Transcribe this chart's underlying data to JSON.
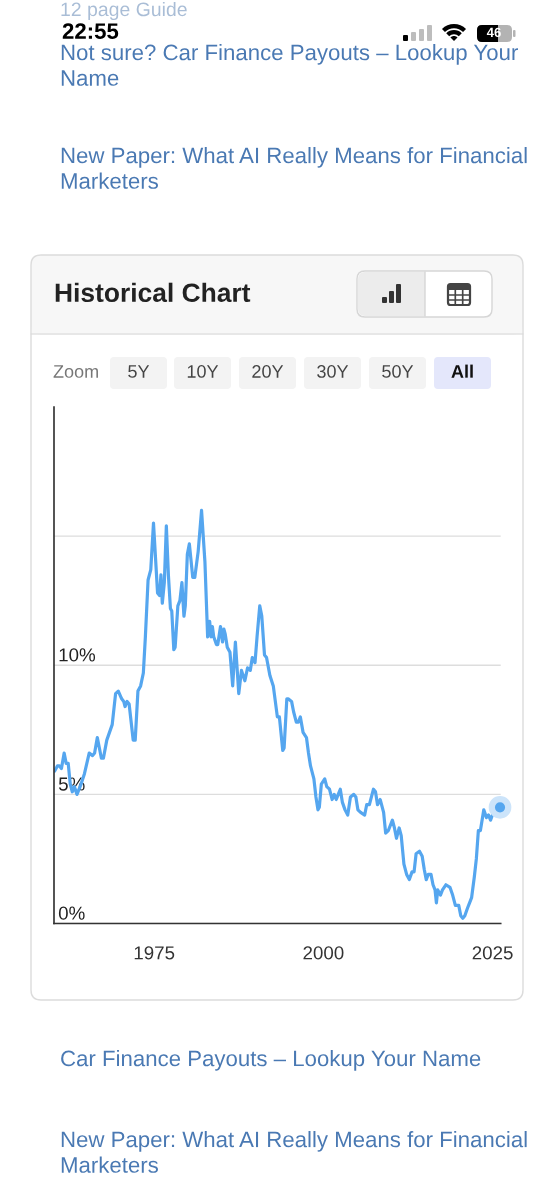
{
  "chart_data": {
    "type": "line",
    "title": "Historical Chart",
    "annotations": [
      "12 page Guide",
      "22:55",
      "46",
      "Not sure? Car Finance Payouts – Lookup Your Name",
      "New Paper: What AI Really Means for Financial Marketers",
      "Zoom",
      "5Y",
      "10Y",
      "20Y",
      "30Y",
      "50Y",
      "All",
      "Car Finance Payouts – Lookup Your Name",
      "New Paper: What AI Really Means for Financial Marketers"
    ],
    "series": [
      {
        "color": "#55a6ef",
        "x": [
          1960.3,
          1960.7,
          1961.0,
          1961.3,
          1961.7,
          1962.0,
          1962.3,
          1962.6,
          1962.9,
          1963.2,
          1963.6,
          1964.2,
          1964.7,
          1965.4,
          1965.9,
          1966.2,
          1966.6,
          1967.2,
          1967.5,
          1968.0,
          1968.8,
          1969.3,
          1969.7,
          1970.2,
          1970.5,
          1970.7,
          1971.0,
          1971.3,
          1971.9,
          1972.2,
          1972.6,
          1973.0,
          1973.4,
          1973.7,
          1974.1,
          1974.5,
          1974.9,
          1975.5,
          1975.8,
          1976.0,
          1976.2,
          1976.5,
          1976.8,
          1977.1,
          1977.4,
          1977.6,
          1977.9,
          1978.1,
          1978.5,
          1978.8,
          1979.1,
          1979.4,
          1979.6,
          1979.9,
          1980.2,
          1980.7,
          1981.0,
          1981.5,
          1982.0,
          1982.5,
          1982.9,
          1983.2,
          1983.4,
          1983.6,
          1983.8,
          1984.2,
          1984.4,
          1984.8,
          1985.1,
          1985.3,
          1985.5,
          1985.8,
          1986.2,
          1986.6,
          1987.0,
          1987.5,
          1987.9,
          1988.4,
          1988.8,
          1989.2,
          1989.5,
          1989.9,
          1990.2,
          1990.6,
          1990.9,
          1991.3,
          1991.6,
          1992.1,
          1992.6,
          1993.2,
          1993.5,
          1994.0,
          1994.2,
          1994.6,
          1994.8,
          1995.3,
          1995.6,
          1996.0,
          1996.3,
          1996.6,
          1997.0,
          1997.5,
          1997.8,
          1998.1,
          1998.6,
          1998.9,
          1999.2,
          1999.4,
          1999.7,
          2000.2,
          2000.5,
          2000.9,
          2001.3,
          2001.6,
          2001.9,
          2002.2,
          2002.5,
          2002.8,
          2003.2,
          2003.6,
          2004.0,
          2004.5,
          2004.8,
          2005.1,
          2005.5,
          2006.1,
          2006.4,
          2006.8,
          2007.1,
          2007.4,
          2007.7,
          2008.0,
          2008.4,
          2008.9,
          2009.2,
          2009.6,
          2010.2,
          2010.5,
          2010.8,
          2011.2,
          2011.5,
          2011.9,
          2012.3,
          2012.7,
          2013.1,
          2013.4,
          2013.7,
          2014.2,
          2014.6,
          2014.9,
          2015.2,
          2015.5,
          2015.9,
          2016.2,
          2016.5,
          2016.7,
          2016.9,
          2017.3,
          2017.6,
          2018.1,
          2018.7,
          2019.1,
          2019.5,
          2020.0,
          2020.3,
          2020.6,
          2020.9,
          2021.3,
          2021.6,
          2021.9,
          2022.3,
          2022.6,
          2022.9,
          2023.2,
          2023.7,
          2024.1,
          2024.4,
          2024.7,
          2025.1,
          2025.6,
          2026.1
        ],
        "values": [
          5.9,
          6.1,
          6.1,
          6.0,
          6.6,
          6.2,
          6.2,
          5.4,
          5.1,
          5.3,
          5.0,
          5.4,
          5.8,
          6.6,
          6.5,
          6.6,
          7.2,
          6.4,
          6.4,
          7.1,
          7.7,
          8.9,
          9.0,
          8.7,
          8.6,
          8.4,
          8.6,
          8.5,
          7.1,
          7.1,
          9.0,
          9.2,
          9.7,
          11.1,
          13.3,
          13.7,
          15.5,
          12.8,
          12.7,
          13.5,
          12.4,
          13.2,
          15.4,
          13.5,
          12.2,
          12.1,
          10.6,
          10.7,
          12.3,
          12.5,
          13.2,
          11.9,
          12.3,
          14.3,
          14.7,
          13.4,
          13.4,
          14.4,
          16.0,
          14.0,
          11.1,
          11.7,
          11.1,
          11.5,
          11.1,
          10.8,
          10.8,
          11.5,
          10.9,
          11.4,
          11.2,
          10.7,
          10.5,
          9.2,
          10.9,
          8.9,
          9.8,
          9.4,
          9.9,
          9.8,
          10.3,
          10.1,
          11.1,
          12.3,
          11.9,
          10.4,
          10.3,
          9.6,
          9.2,
          8.0,
          8.0,
          6.7,
          6.8,
          8.7,
          8.7,
          8.6,
          8.2,
          7.8,
          7.8,
          8.0,
          7.4,
          7.2,
          6.6,
          6.1,
          5.6,
          4.9,
          4.4,
          4.5,
          5.4,
          5.6,
          5.3,
          5.2,
          4.8,
          5.0,
          4.8,
          5.0,
          5.2,
          4.7,
          4.4,
          4.2,
          4.9,
          5.0,
          4.9,
          4.4,
          4.3,
          4.2,
          4.6,
          4.6,
          4.9,
          5.2,
          5.1,
          4.6,
          4.8,
          4.3,
          3.5,
          3.6,
          4.0,
          3.7,
          3.3,
          3.7,
          3.4,
          2.3,
          1.9,
          1.7,
          2.0,
          2.0,
          2.7,
          2.8,
          2.6,
          2.1,
          1.7,
          1.9,
          1.9,
          1.5,
          1.3,
          0.8,
          1.3,
          1.1,
          1.3,
          1.5,
          1.4,
          1.1,
          0.7,
          0.7,
          0.3,
          0.2,
          0.3,
          0.6,
          0.8,
          1.0,
          1.8,
          2.5,
          3.6,
          3.6,
          4.4,
          4.1,
          4.2,
          4.0,
          4.3,
          4.5,
          4.5
        ]
      },
      {
        "type": "scatter",
        "color": "#55a6ef",
        "x": [
          2026.1
        ],
        "values": [
          4.5
        ]
      }
    ],
    "xlim": [
      1960.2,
      2026.2
    ],
    "xticks": [
      1975,
      2000,
      2025
    ],
    "ylim": [
      0,
      20
    ],
    "yticks": [
      {
        "value": 0,
        "label": "0%"
      },
      {
        "value": 5,
        "label": "5%"
      },
      {
        "value": 10,
        "label": "10%"
      },
      {
        "value": 15,
        "label": null
      }
    ],
    "grid": "y"
  }
}
